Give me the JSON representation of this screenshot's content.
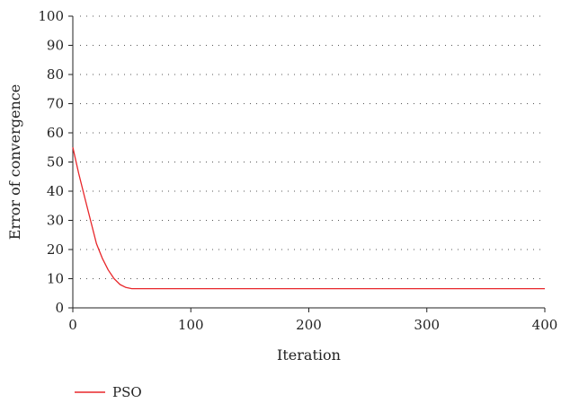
{
  "chart_data": {
    "type": "line",
    "title": "",
    "xlabel": "Iteration",
    "ylabel": "Error of convergence",
    "xlim": [
      0,
      400
    ],
    "ylim": [
      0,
      100
    ],
    "xticks": [
      0,
      100,
      200,
      300,
      400
    ],
    "yticks": [
      0,
      10,
      20,
      30,
      40,
      50,
      60,
      70,
      80,
      90,
      100
    ],
    "grid": "horizontal dotted",
    "legend_position": "bottom-left",
    "series": [
      {
        "name": "PSO",
        "color": "#e8262a",
        "x": [
          0,
          5,
          10,
          15,
          20,
          25,
          30,
          35,
          40,
          45,
          50,
          55,
          60,
          100,
          200,
          300,
          400
        ],
        "y": [
          55,
          46,
          38,
          30,
          22,
          17,
          13,
          10,
          8,
          7,
          6.6,
          6.6,
          6.6,
          6.6,
          6.6,
          6.6,
          6.6
        ]
      }
    ]
  }
}
